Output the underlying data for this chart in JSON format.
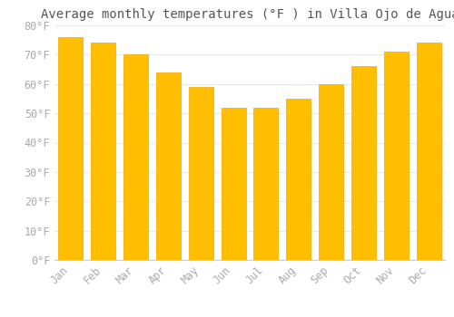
{
  "title": "Average monthly temperatures (°F ) in Villa Ojo de Agua",
  "months": [
    "Jan",
    "Feb",
    "Mar",
    "Apr",
    "May",
    "Jun",
    "Jul",
    "Aug",
    "Sep",
    "Oct",
    "Nov",
    "Dec"
  ],
  "values": [
    76,
    74,
    70,
    64,
    59,
    52,
    52,
    55,
    60,
    66,
    71,
    74
  ],
  "bar_color_face": "#FFBF00",
  "bar_color_edge": "#F5A800",
  "ylim": [
    0,
    80
  ],
  "yticks": [
    0,
    10,
    20,
    30,
    40,
    50,
    60,
    70,
    80
  ],
  "ytick_labels": [
    "0°F",
    "10°F",
    "20°F",
    "30°F",
    "40°F",
    "50°F",
    "60°F",
    "70°F",
    "80°F"
  ],
  "background_color": "#FFFFFF",
  "grid_color": "#E8E8E8",
  "title_fontsize": 10,
  "tick_fontsize": 8.5,
  "font_family": "monospace",
  "title_color": "#555555",
  "tick_color": "#AAAAAA"
}
